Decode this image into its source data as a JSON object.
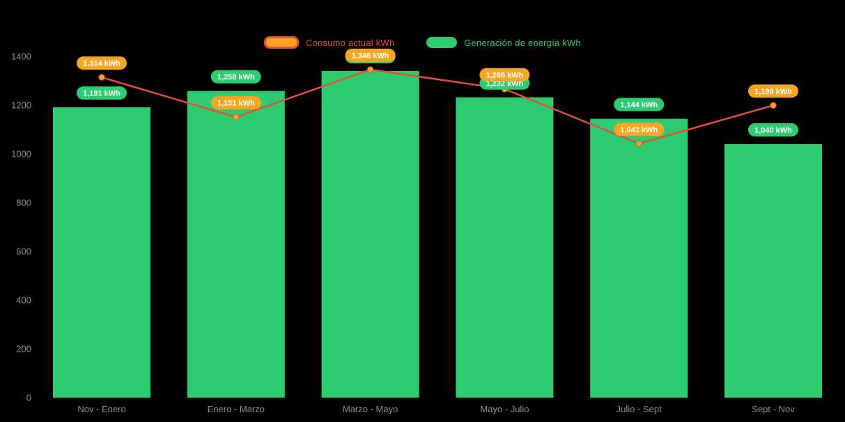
{
  "chart_data": {
    "type": "bar",
    "subtype": "bar+line combo",
    "title": "",
    "unit": "kWh",
    "categories": [
      "Nov - Enero",
      "Enero - Marzo",
      "Marzo - Mayo",
      "Mayo - Julio",
      "Julio - Sept",
      "Sept - Nov"
    ],
    "series": [
      {
        "name": "Consumo actual kWh",
        "type": "line",
        "color": "#e74c3c",
        "marker_color": "#f5a623",
        "label_bg": "#f5a623",
        "values": [
          1314,
          1151,
          1346,
          1266,
          1042,
          1199
        ]
      },
      {
        "name": "Generación de energía kWh",
        "type": "bar",
        "color": "#2ecc71",
        "label_bg": "#2ecc71",
        "values": [
          1191,
          1258,
          1340,
          1232,
          1144,
          1040
        ]
      }
    ],
    "ylim": [
      0,
      1400
    ],
    "yticks": [
      0,
      200,
      400,
      600,
      800,
      1000,
      1200,
      1400
    ],
    "grid": false,
    "legend_position": "top-center",
    "background": "#000000",
    "axis_text_color": "#8f8f8f",
    "label_text_color": "#ffffff"
  }
}
